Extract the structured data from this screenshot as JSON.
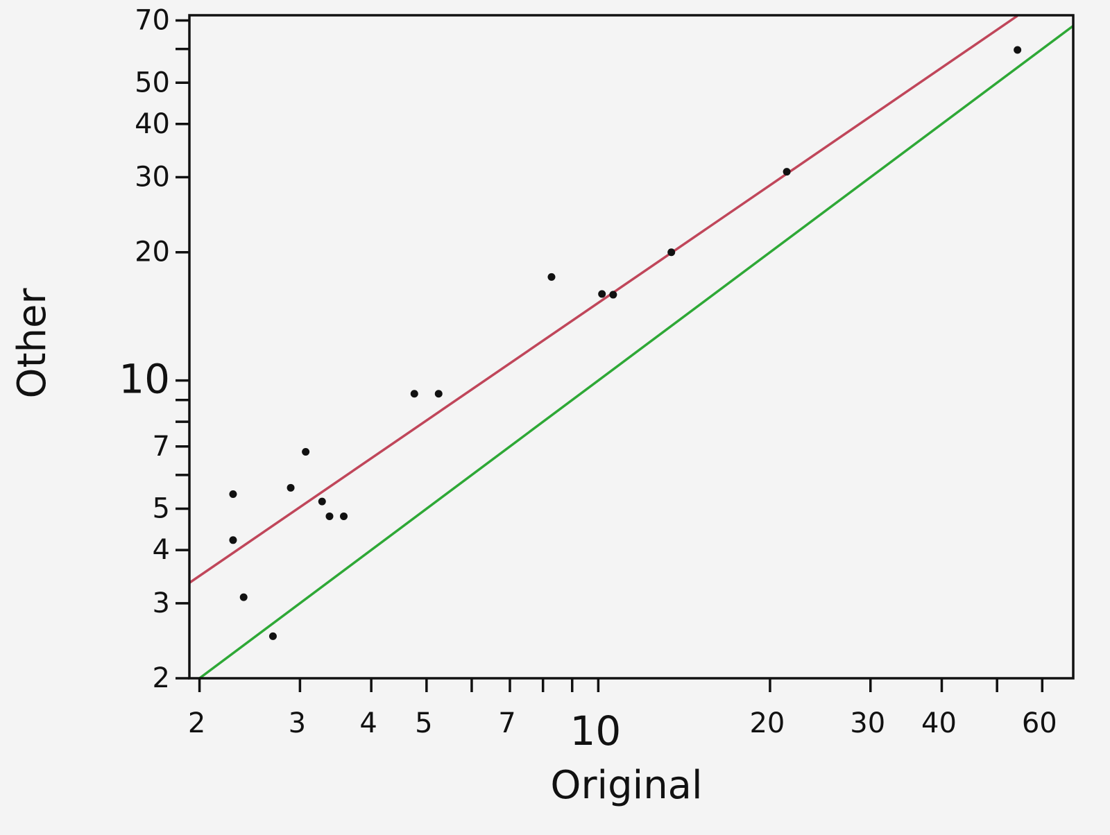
{
  "chart_data": {
    "type": "scatter",
    "xlabel": "Original",
    "ylabel": "Other",
    "log_x": true,
    "log_y": true,
    "point_color": "#111111",
    "emphasized_tick": 10,
    "x": [
      2.29,
      2.29,
      2.39,
      2.69,
      2.89,
      3.07,
      3.28,
      3.38,
      3.58,
      4.76,
      5.25,
      8.28,
      10.15,
      10.62,
      13.43,
      21.4,
      54.3
    ],
    "values": [
      5.41,
      4.22,
      3.1,
      2.51,
      5.6,
      6.8,
      5.2,
      4.8,
      4.8,
      9.31,
      9.31,
      17.5,
      15.96,
      15.9,
      20.0,
      30.9,
      59.7
    ],
    "lines": [
      {
        "color": "#c0465a",
        "x": [
          1.92,
          54.3
        ],
        "values": [
          3.35,
          71.8
        ]
      },
      {
        "color": "#2ea836",
        "x": [
          2,
          68
        ],
        "values": [
          2,
          68
        ]
      }
    ],
    "xlim": [
      1.92,
      68
    ],
    "ylim": [
      2,
      72
    ],
    "xticks": [
      2,
      3,
      4,
      5,
      7,
      10,
      20,
      30,
      40,
      60
    ],
    "xminorticks": [
      6,
      8,
      9,
      50
    ],
    "yticks": [
      2,
      3,
      4,
      5,
      7,
      10,
      20,
      30,
      40,
      50,
      70
    ],
    "yminorticks": [
      6,
      8,
      9,
      60
    ]
  }
}
